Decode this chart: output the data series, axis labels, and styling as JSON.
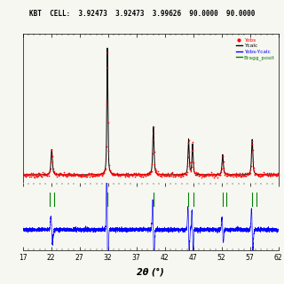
{
  "title": "KBT  CELL:  3.92473  3.92473  3.99626  90.0000  90.0000",
  "xlabel": "2θ (°)",
  "xlim": [
    17,
    62
  ],
  "xticks": [
    17,
    22,
    27,
    32,
    37,
    42,
    47,
    52,
    57,
    62
  ],
  "bragg_positions": [
    21.8,
    22.5,
    31.9,
    40.0,
    46.2,
    47.0,
    52.2,
    52.9,
    57.3,
    58.1
  ],
  "legend_labels": [
    "Yobs",
    "Ycalc",
    "Yobs-Ycalc",
    "Bragg_posit"
  ],
  "legend_colors": [
    "red",
    "black",
    "blue",
    "green"
  ],
  "background_color": "#f7f7f2",
  "peak_positions": [
    22.1,
    31.9,
    40.0,
    46.2,
    46.9,
    52.2,
    57.4
  ],
  "peak_heights": [
    0.2,
    1.0,
    0.38,
    0.28,
    0.24,
    0.16,
    0.28
  ],
  "peak_fwhm": [
    0.3,
    0.22,
    0.28,
    0.25,
    0.25,
    0.28,
    0.28
  ],
  "noise_amplitude": 0.008,
  "baseline": 0.04
}
